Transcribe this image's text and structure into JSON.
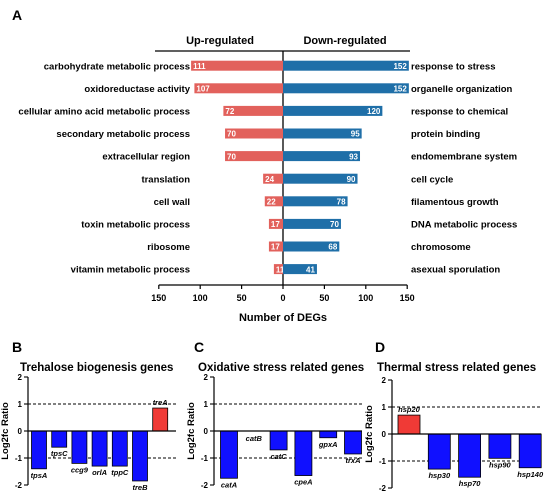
{
  "panel_labels": [
    "A",
    "B",
    "C",
    "D"
  ],
  "colors": {
    "up": "#e2615c",
    "down": "#1f6fa8",
    "neg": "#1010ff",
    "pos": "#f03a36"
  },
  "chart_data": [
    {
      "panel": "A",
      "type": "bar",
      "orientation": "diverging-horizontal",
      "xlabel": "Number of DEGs",
      "xlim": [
        -150,
        150
      ],
      "xticks": [
        "150",
        "100",
        "50",
        "0",
        "50",
        "100",
        "150"
      ],
      "series": [
        {
          "name": "Up-regulated",
          "categories": [
            "carbohydrate metabolic process",
            "oxidoreductase activity",
            "cellular amino acid metabolic process",
            "secondary metabolic process",
            "extracellular region",
            "translation",
            "cell wall",
            "toxin metabolic process",
            "ribosome",
            "vitamin metabolic process"
          ],
          "values": [
            111,
            107,
            72,
            70,
            70,
            24,
            22,
            17,
            17,
            11
          ]
        },
        {
          "name": "Down-regulated",
          "categories": [
            "response to stress",
            "organelle organization",
            "response to chemical",
            "protein binding",
            "endomembrane system",
            "cell cycle",
            "filamentous growth",
            "DNA metabolic process",
            "chromosome",
            "asexual sporulation"
          ],
          "values": [
            152,
            152,
            120,
            95,
            93,
            90,
            78,
            70,
            68,
            41
          ]
        }
      ]
    },
    {
      "panel": "B",
      "type": "bar",
      "title": "Trehalose biogenesis genes",
      "ylabel": "Log2fc Ratio",
      "ylim": [
        -2,
        2
      ],
      "yticks": [
        "2",
        "1",
        "0",
        "-1",
        "-2"
      ],
      "reference_lines": [
        1,
        -1
      ],
      "categories": [
        "tpsA",
        "tpsC",
        "ccg9",
        "orlA",
        "tppC",
        "treB",
        "treA"
      ],
      "values": [
        -1.4,
        -0.6,
        -1.2,
        -1.3,
        -1.3,
        -1.85,
        0.85
      ]
    },
    {
      "panel": "C",
      "type": "bar",
      "title": "Oxidative stress related genes",
      "ylabel": "Log2fc Ratio",
      "ylim": [
        -2,
        2
      ],
      "yticks": [
        "2",
        "1",
        "0",
        "-1",
        "-2"
      ],
      "reference_lines": [
        1,
        -1
      ],
      "categories": [
        "catA",
        "catB",
        "catC",
        "cpeA",
        "gpxA",
        "trxA"
      ],
      "values": [
        -1.75,
        0.0,
        -0.7,
        -1.65,
        -0.25,
        -0.85
      ]
    },
    {
      "panel": "D",
      "type": "bar",
      "title": "Thermal stress related genes",
      "ylabel": "Log2fc Ratio",
      "ylim": [
        -2,
        2
      ],
      "yticks": [
        "2",
        "1",
        "0",
        "-1",
        "-2"
      ],
      "reference_lines": [
        1,
        -1
      ],
      "categories": [
        "hsp20",
        "hsp30",
        "hsp70",
        "hsp90",
        "hsp140"
      ],
      "values": [
        0.7,
        -1.3,
        -1.6,
        -0.9,
        -1.25
      ]
    }
  ]
}
